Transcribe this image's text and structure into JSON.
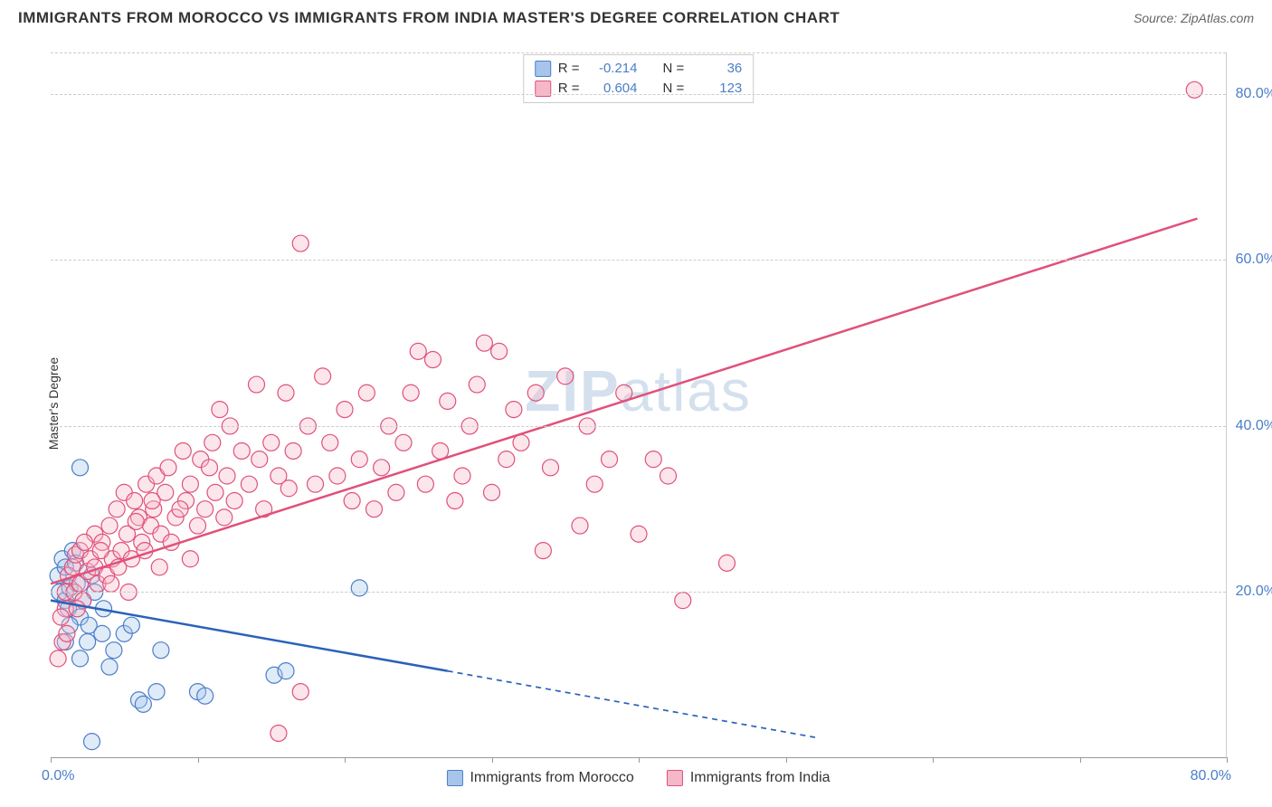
{
  "header": {
    "title": "IMMIGRANTS FROM MOROCCO VS IMMIGRANTS FROM INDIA MASTER'S DEGREE CORRELATION CHART",
    "source_prefix": "Source: ",
    "source_name": "ZipAtlas.com"
  },
  "chart": {
    "type": "scatter",
    "ylabel": "Master's Degree",
    "xlim": [
      0,
      80
    ],
    "ylim": [
      0,
      85
    ],
    "xtick_positions": [
      0,
      10,
      20,
      30,
      40,
      50,
      60,
      70,
      80
    ],
    "xtick_labels_shown": {
      "0": "0.0%",
      "80": "80.0%"
    },
    "ytick_positions": [
      20,
      40,
      60,
      80
    ],
    "ytick_labels": {
      "20": "20.0%",
      "40": "40.0%",
      "60": "60.0%",
      "80": "80.0%"
    },
    "grid_color": "#cccccc",
    "background_color": "#ffffff",
    "axis_label_color": "#4a7ec9",
    "marker_radius": 9,
    "marker_stroke_width": 1.2,
    "marker_fill_opacity": 0.35,
    "watermark_text_bold": "ZIP",
    "watermark_text_light": "atlas",
    "series": [
      {
        "id": "morocco",
        "label": "Immigrants from Morocco",
        "color_fill": "#a7c5eb",
        "color_stroke": "#4a7ec9",
        "R": -0.214,
        "N": 36,
        "trend": {
          "x0": 0,
          "y0": 19,
          "x1_solid": 27,
          "y1_solid": 10.5,
          "x1_dash": 52,
          "y1_dash": 2.5,
          "stroke": "#2a62b8",
          "width": 2.5,
          "dash": "6,5"
        },
        "points": [
          [
            0.5,
            22
          ],
          [
            0.6,
            20
          ],
          [
            0.8,
            24
          ],
          [
            1.0,
            23
          ],
          [
            1.0,
            19
          ],
          [
            1.2,
            18
          ],
          [
            1.3,
            20.5
          ],
          [
            1.5,
            25
          ],
          [
            1.7,
            23.5
          ],
          [
            1.8,
            21
          ],
          [
            2.0,
            35
          ],
          [
            2.0,
            17
          ],
          [
            2.2,
            19
          ],
          [
            2.5,
            14
          ],
          [
            2.6,
            16
          ],
          [
            2.8,
            22
          ],
          [
            3.0,
            20
          ],
          [
            3.5,
            15
          ],
          [
            3.6,
            18
          ],
          [
            4.0,
            11
          ],
          [
            4.3,
            13
          ],
          [
            5.0,
            15
          ],
          [
            5.5,
            16
          ],
          [
            6.0,
            7
          ],
          [
            6.3,
            6.5
          ],
          [
            7.2,
            8
          ],
          [
            7.5,
            13
          ],
          [
            10.0,
            8
          ],
          [
            10.5,
            7.5
          ],
          [
            2.8,
            2
          ],
          [
            15.2,
            10
          ],
          [
            16.0,
            10.5
          ],
          [
            21.0,
            20.5
          ],
          [
            1.0,
            14
          ],
          [
            1.3,
            16
          ],
          [
            2.0,
            12
          ]
        ]
      },
      {
        "id": "india",
        "label": "Immigrants from India",
        "color_fill": "#f5b8c9",
        "color_stroke": "#e0517a",
        "R": 0.604,
        "N": 123,
        "trend": {
          "x0": 0,
          "y0": 21,
          "x1_solid": 78,
          "y1_solid": 65,
          "stroke": "#e0517a",
          "width": 2.5
        },
        "points": [
          [
            0.5,
            12
          ],
          [
            0.8,
            14
          ],
          [
            1.0,
            18
          ],
          [
            1.0,
            20
          ],
          [
            1.2,
            22
          ],
          [
            1.5,
            23
          ],
          [
            1.6,
            20
          ],
          [
            1.7,
            24.5
          ],
          [
            2.0,
            21
          ],
          [
            2.0,
            25
          ],
          [
            2.2,
            19
          ],
          [
            2.5,
            22.5
          ],
          [
            2.7,
            24
          ],
          [
            3.0,
            23
          ],
          [
            3.0,
            27
          ],
          [
            3.2,
            21
          ],
          [
            3.5,
            26
          ],
          [
            3.8,
            22
          ],
          [
            4.0,
            28
          ],
          [
            4.2,
            24
          ],
          [
            4.5,
            30
          ],
          [
            4.8,
            25
          ],
          [
            5.0,
            32
          ],
          [
            5.2,
            27
          ],
          [
            5.5,
            24
          ],
          [
            5.7,
            31
          ],
          [
            6.0,
            29
          ],
          [
            6.2,
            26
          ],
          [
            6.5,
            33
          ],
          [
            6.8,
            28
          ],
          [
            7.0,
            30
          ],
          [
            7.2,
            34
          ],
          [
            7.5,
            27
          ],
          [
            7.8,
            32
          ],
          [
            8.0,
            35
          ],
          [
            8.5,
            29
          ],
          [
            9.0,
            37
          ],
          [
            9.2,
            31
          ],
          [
            9.5,
            33
          ],
          [
            10.0,
            28
          ],
          [
            10.2,
            36
          ],
          [
            10.5,
            30
          ],
          [
            11.0,
            38
          ],
          [
            11.2,
            32
          ],
          [
            11.5,
            42
          ],
          [
            12.0,
            34
          ],
          [
            12.2,
            40
          ],
          [
            12.5,
            31
          ],
          [
            13.0,
            37
          ],
          [
            13.5,
            33
          ],
          [
            14.0,
            45
          ],
          [
            14.2,
            36
          ],
          [
            14.5,
            30
          ],
          [
            15.0,
            38
          ],
          [
            15.5,
            34
          ],
          [
            16.0,
            44
          ],
          [
            16.2,
            32.5
          ],
          [
            16.5,
            37
          ],
          [
            17.0,
            62
          ],
          [
            17.5,
            40
          ],
          [
            18.0,
            33
          ],
          [
            18.5,
            46
          ],
          [
            19.0,
            38
          ],
          [
            19.5,
            34
          ],
          [
            20.0,
            42
          ],
          [
            20.5,
            31
          ],
          [
            21.0,
            36
          ],
          [
            21.5,
            44
          ],
          [
            22.0,
            30
          ],
          [
            22.5,
            35
          ],
          [
            23.0,
            40
          ],
          [
            23.5,
            32
          ],
          [
            24.0,
            38
          ],
          [
            24.5,
            44
          ],
          [
            25.0,
            49
          ],
          [
            25.5,
            33
          ],
          [
            26.0,
            48
          ],
          [
            26.5,
            37
          ],
          [
            27.0,
            43
          ],
          [
            27.5,
            31
          ],
          [
            28.0,
            34
          ],
          [
            28.5,
            40
          ],
          [
            29.0,
            45
          ],
          [
            29.5,
            50
          ],
          [
            30.0,
            32
          ],
          [
            30.5,
            49
          ],
          [
            31.0,
            36
          ],
          [
            31.5,
            42
          ],
          [
            32.0,
            38
          ],
          [
            33.0,
            44
          ],
          [
            33.5,
            25
          ],
          [
            34.0,
            35
          ],
          [
            35.0,
            46
          ],
          [
            36.0,
            28
          ],
          [
            36.5,
            40
          ],
          [
            37.0,
            33
          ],
          [
            38.0,
            36
          ],
          [
            39.0,
            44
          ],
          [
            40.0,
            27
          ],
          [
            41.0,
            36
          ],
          [
            42.0,
            34
          ],
          [
            43.0,
            19
          ],
          [
            46.0,
            23.5
          ],
          [
            15.5,
            3
          ],
          [
            17.0,
            8
          ],
          [
            0.7,
            17
          ],
          [
            1.1,
            15
          ],
          [
            1.8,
            18
          ],
          [
            2.3,
            26
          ],
          [
            3.4,
            25
          ],
          [
            4.1,
            21
          ],
          [
            4.6,
            23
          ],
          [
            5.3,
            20
          ],
          [
            5.8,
            28.5
          ],
          [
            6.4,
            25
          ],
          [
            6.9,
            31
          ],
          [
            7.4,
            23
          ],
          [
            8.2,
            26
          ],
          [
            8.8,
            30
          ],
          [
            9.5,
            24
          ],
          [
            10.8,
            35
          ],
          [
            11.8,
            29
          ],
          [
            77.8,
            80.5
          ]
        ]
      }
    ]
  },
  "legend_top": {
    "r_label": "R =",
    "n_label": "N ="
  }
}
